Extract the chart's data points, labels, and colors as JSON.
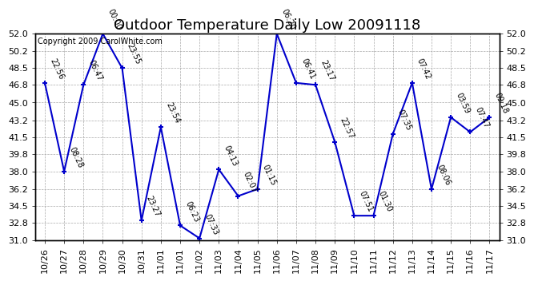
{
  "title": "Outdoor Temperature Daily Low 20091118",
  "copyright": "Copyright 2009 CarolWhite.com",
  "x_labels": [
    "10/26",
    "10/27",
    "10/28",
    "10/29",
    "10/30",
    "10/31",
    "11/01",
    "11/01",
    "11/02",
    "11/03",
    "11/04",
    "11/05",
    "11/06",
    "11/07",
    "11/08",
    "11/09",
    "11/10",
    "11/11",
    "11/12",
    "11/13",
    "11/14",
    "11/15",
    "11/16",
    "11/17"
  ],
  "y_values": [
    47.0,
    38.0,
    46.8,
    52.0,
    48.5,
    33.0,
    42.5,
    32.5,
    31.2,
    38.2,
    35.5,
    36.2,
    52.0,
    47.0,
    46.8,
    41.0,
    33.5,
    33.5,
    41.8,
    47.0,
    36.2,
    43.5,
    42.0,
    43.5
  ],
  "time_labels": [
    "22:56",
    "08:28",
    "06:47",
    "00:00",
    "23:55",
    "23:27",
    "23:54",
    "06:23",
    "07:33",
    "04:13",
    "02:07",
    "01:15",
    "06:20",
    "06:41",
    "23:17",
    "22:57",
    "07:51",
    "01:30",
    "07:35",
    "07:42",
    "08:06",
    "03:59",
    "07:47",
    "09:18"
  ],
  "line_color": "#0000cc",
  "marker_color": "#0000cc",
  "bg_color": "#ffffff",
  "grid_color": "#aaaaaa",
  "ylim_min": 31.0,
  "ylim_max": 52.0,
  "yticks": [
    31.0,
    32.8,
    34.5,
    36.2,
    38.0,
    39.8,
    41.5,
    43.2,
    45.0,
    46.8,
    48.5,
    50.2,
    52.0
  ],
  "title_fontsize": 13,
  "tick_fontsize": 8,
  "copyright_fontsize": 7,
  "annot_fontsize": 7
}
